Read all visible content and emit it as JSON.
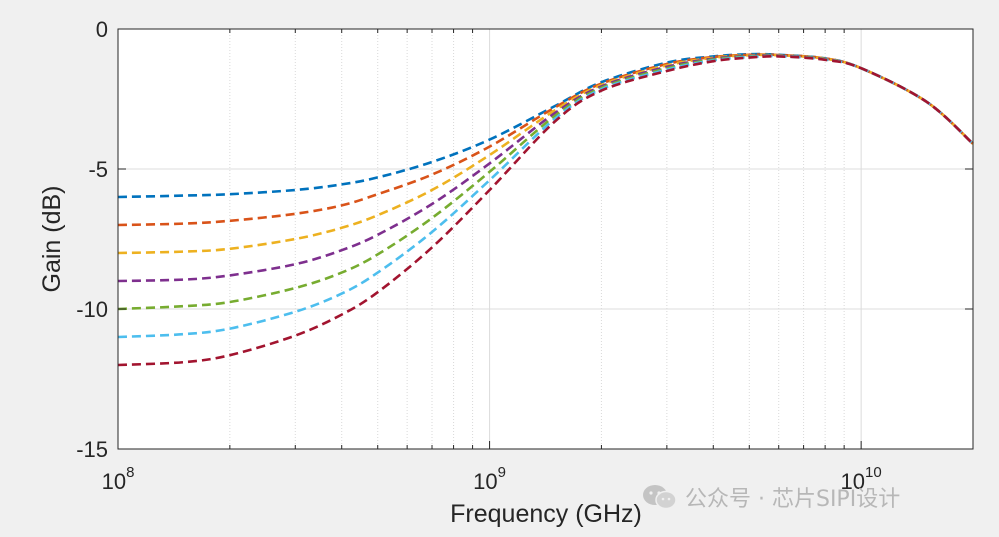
{
  "chart_data": {
    "type": "line",
    "title": "",
    "xlabel": "Frequency (GHz)",
    "ylabel": "Gain (dB)",
    "xscale": "log",
    "xlim": [
      100000000,
      20000000000
    ],
    "ylim": [
      -15,
      0
    ],
    "grid": true,
    "line_style": "dashed",
    "x_ticks": [
      {
        "base": "10",
        "exp": "8",
        "value": 100000000
      },
      {
        "base": "10",
        "exp": "9",
        "value": 1000000000
      },
      {
        "base": "10",
        "exp": "10",
        "value": 10000000000
      }
    ],
    "y_ticks": [
      {
        "label": "0",
        "value": 0
      },
      {
        "label": "-5",
        "value": -5
      },
      {
        "label": "-10",
        "value": -10
      },
      {
        "label": "-15",
        "value": -15
      }
    ],
    "x": [
      100000000,
      150000000,
      200000000,
      300000000,
      400000000,
      500000000,
      700000000,
      1000000000,
      1500000000,
      2000000000,
      3000000000,
      4000000000,
      5000000000,
      6000000000,
      8000000000,
      10000000000,
      15000000000,
      20000000000
    ],
    "series": [
      {
        "name": "series 1",
        "color": "#0072BD",
        "values": [
          -6.0,
          -5.95,
          -5.9,
          -5.75,
          -5.55,
          -5.3,
          -4.75,
          -3.95,
          -2.75,
          -1.9,
          -1.2,
          -0.98,
          -0.9,
          -0.92,
          -1.05,
          -1.4,
          -2.6,
          -4.1
        ]
      },
      {
        "name": "series 2",
        "color": "#D95319",
        "values": [
          -7.0,
          -6.95,
          -6.85,
          -6.6,
          -6.3,
          -5.9,
          -5.2,
          -4.2,
          -2.8,
          -1.95,
          -1.25,
          -1.0,
          -0.92,
          -0.93,
          -1.05,
          -1.4,
          -2.6,
          -4.1
        ]
      },
      {
        "name": "series 3",
        "color": "#EDB120",
        "values": [
          -8.0,
          -7.95,
          -7.85,
          -7.5,
          -7.1,
          -6.65,
          -5.75,
          -4.5,
          -2.9,
          -2.0,
          -1.3,
          -1.03,
          -0.94,
          -0.94,
          -1.06,
          -1.4,
          -2.6,
          -4.1
        ]
      },
      {
        "name": "series 4",
        "color": "#7E2F8E",
        "values": [
          -9.0,
          -8.95,
          -8.8,
          -8.4,
          -7.9,
          -7.35,
          -6.25,
          -4.8,
          -3.0,
          -2.05,
          -1.35,
          -1.06,
          -0.96,
          -0.95,
          -1.07,
          -1.4,
          -2.6,
          -4.1
        ]
      },
      {
        "name": "series 5",
        "color": "#77AC30",
        "values": [
          -10.0,
          -9.9,
          -9.75,
          -9.25,
          -8.7,
          -8.05,
          -6.75,
          -5.1,
          -3.1,
          -2.1,
          -1.4,
          -1.09,
          -0.98,
          -0.96,
          -1.08,
          -1.4,
          -2.6,
          -4.1
        ]
      },
      {
        "name": "series 6",
        "color": "#4DBEEE",
        "values": [
          -11.0,
          -10.9,
          -10.7,
          -10.1,
          -9.45,
          -8.7,
          -7.25,
          -5.4,
          -3.2,
          -2.15,
          -1.45,
          -1.12,
          -1.0,
          -0.97,
          -1.09,
          -1.4,
          -2.6,
          -4.1
        ]
      },
      {
        "name": "series 7",
        "color": "#A2142F",
        "values": [
          -12.0,
          -11.9,
          -11.65,
          -10.95,
          -10.2,
          -9.4,
          -7.8,
          -5.75,
          -3.3,
          -2.2,
          -1.5,
          -1.15,
          -1.02,
          -0.98,
          -1.1,
          -1.4,
          -2.6,
          -4.1
        ]
      }
    ]
  },
  "watermark": {
    "icon": "wechat-icon",
    "text": "公众号 · 芯片SIPI设计"
  }
}
